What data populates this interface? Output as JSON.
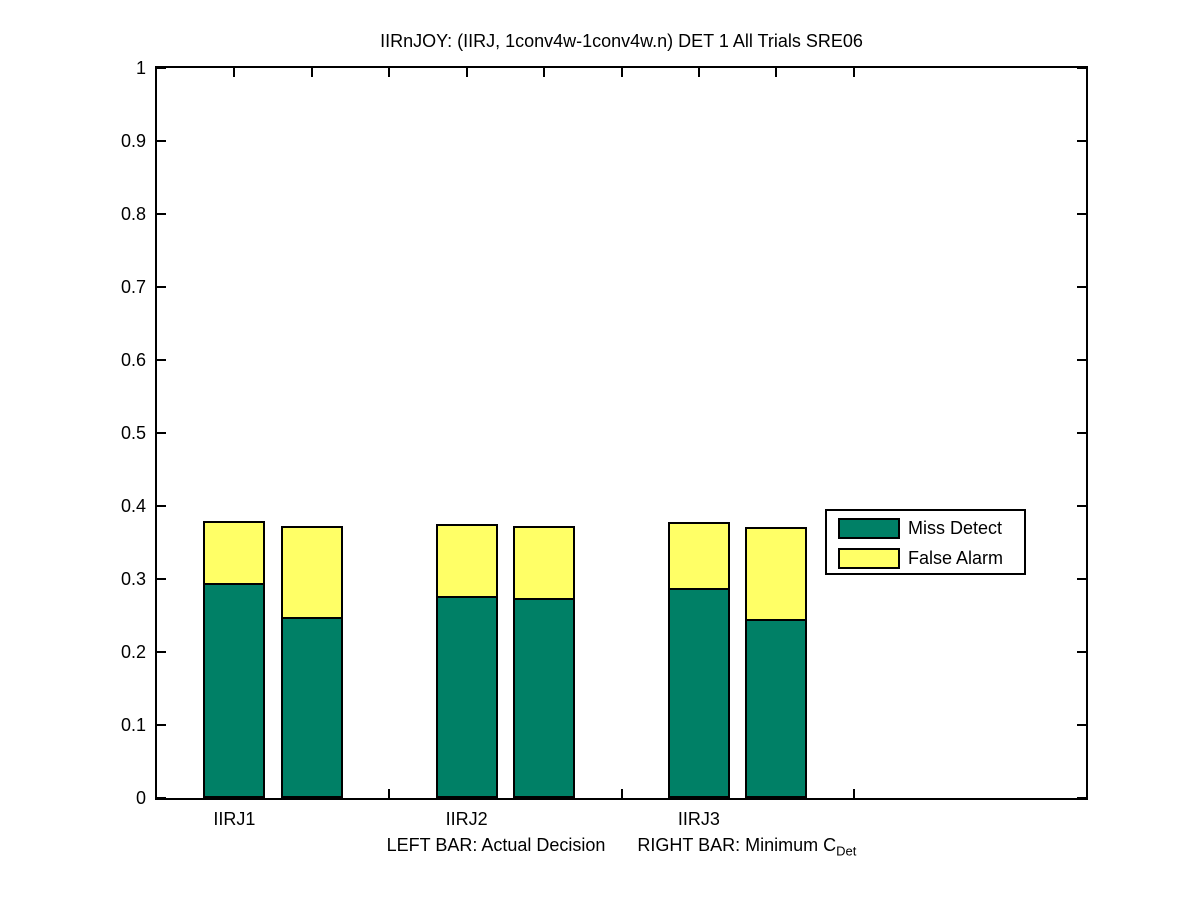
{
  "title": "IIRnJOY: (IIRJ, 1conv4w-1conv4w.n) DET 1 All Trials SRE06",
  "xlabel": {
    "left_text": "LEFT BAR: Actual Decision",
    "right_text": "RIGHT BAR: Minimum C",
    "subscript": "Det"
  },
  "legend": {
    "position": "middle-right",
    "items": [
      {
        "label": "Miss Detect",
        "color": "#008066"
      },
      {
        "label": "False Alarm",
        "color": "#ffff66"
      }
    ]
  },
  "chart_data": {
    "type": "bar",
    "stacked": true,
    "title": "IIRnJOY: (IIRJ, 1conv4w-1conv4w.n) DET 1 All Trials SRE06",
    "xlabel": "LEFT BAR: Actual Decision    RIGHT BAR: Minimum C_Det",
    "ylabel": "",
    "grid": false,
    "ylim": [
      0,
      1
    ],
    "yticks": [
      0,
      0.1,
      0.2,
      0.3,
      0.4,
      0.5,
      0.6,
      0.7,
      0.8,
      0.9,
      1
    ],
    "ytick_labels": [
      "0",
      "0.1",
      "0.2",
      "0.3",
      "0.4",
      "0.5",
      "0.6",
      "0.7",
      "0.8",
      "0.9",
      "1"
    ],
    "xlim": [
      0,
      12
    ],
    "xticks": [
      1,
      2,
      3,
      4,
      5,
      6,
      7,
      8,
      9
    ],
    "bar_width_units": 0.8,
    "series_legend": [
      "Miss Detect",
      "False Alarm"
    ],
    "colors": {
      "miss_detect": "#008066",
      "false_alarm": "#ffff66",
      "edge": "#000000"
    },
    "groups": [
      {
        "label": "IIRJ1",
        "label_x": 1,
        "bars": [
          {
            "kind": "actual_decision",
            "x": 1,
            "miss_detect": 0.295,
            "false_alarm": 0.084
          },
          {
            "kind": "minimum_cdet",
            "x": 2,
            "miss_detect": 0.248,
            "false_alarm": 0.125
          }
        ]
      },
      {
        "label": "IIRJ2",
        "label_x": 4,
        "bars": [
          {
            "kind": "actual_decision",
            "x": 4,
            "miss_detect": 0.277,
            "false_alarm": 0.098
          },
          {
            "kind": "minimum_cdet",
            "x": 5,
            "miss_detect": 0.274,
            "false_alarm": 0.098
          }
        ]
      },
      {
        "label": "IIRJ3",
        "label_x": 7,
        "bars": [
          {
            "kind": "actual_decision",
            "x": 7,
            "miss_detect": 0.288,
            "false_alarm": 0.09
          },
          {
            "kind": "minimum_cdet",
            "x": 8,
            "miss_detect": 0.245,
            "false_alarm": 0.126
          }
        ]
      }
    ]
  }
}
